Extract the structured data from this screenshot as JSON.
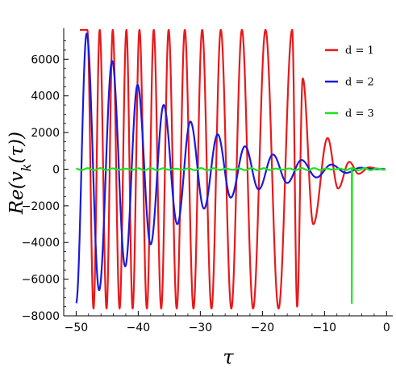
{
  "chart_data": {
    "type": "line",
    "title": "",
    "xlabel": "τ",
    "ylabel": "Re(v_k(τ))",
    "xlim": [
      -52,
      1
    ],
    "ylim": [
      -8000,
      7600
    ],
    "x_ticks": [
      {
        "value": -50,
        "label": "−50"
      },
      {
        "value": -40,
        "label": "−40"
      },
      {
        "value": -30,
        "label": "−30"
      },
      {
        "value": -20,
        "label": "−20"
      },
      {
        "value": -10,
        "label": "−10"
      },
      {
        "value": 0,
        "label": "0"
      }
    ],
    "y_ticks": [
      {
        "value": -8000,
        "label": "−8000"
      },
      {
        "value": -6000,
        "label": "−6000"
      },
      {
        "value": -4000,
        "label": "−4000"
      },
      {
        "value": -2000,
        "label": "−2000"
      },
      {
        "value": 0,
        "label": "0"
      },
      {
        "value": 2000,
        "label": "2000"
      },
      {
        "value": 4000,
        "label": "4000"
      },
      {
        "value": 6000,
        "label": "6000"
      }
    ],
    "grid": false,
    "legend_position": "top-right",
    "series": [
      {
        "name": "d = 1",
        "color": "#e8191b",
        "model": "oscillation",
        "x_start": -49.4,
        "x_end": -0.2,
        "peaks": [
          {
            "x": -48.2,
            "y": 7600
          },
          {
            "x": -47.2,
            "y": -7600
          },
          {
            "x": -46.2,
            "y": 7600
          },
          {
            "x": -45.1,
            "y": -7600
          },
          {
            "x": -44.1,
            "y": 7600
          },
          {
            "x": -43.0,
            "y": -7600
          },
          {
            "x": -41.9,
            "y": 7600
          },
          {
            "x": -40.9,
            "y": -7600
          },
          {
            "x": -39.8,
            "y": 7600
          },
          {
            "x": -38.6,
            "y": -7600
          },
          {
            "x": -37.5,
            "y": 7600
          },
          {
            "x": -36.3,
            "y": -7600
          },
          {
            "x": -35.1,
            "y": 7600
          },
          {
            "x": -33.8,
            "y": -7600
          },
          {
            "x": -32.5,
            "y": 7600
          },
          {
            "x": -31.1,
            "y": -7600
          },
          {
            "x": -29.7,
            "y": 7600
          },
          {
            "x": -28.2,
            "y": -7600
          },
          {
            "x": -26.7,
            "y": 7600
          },
          {
            "x": -25.0,
            "y": -7600
          },
          {
            "x": -23.3,
            "y": 7600
          },
          {
            "x": -21.5,
            "y": -7600
          },
          {
            "x": -19.5,
            "y": 7600
          },
          {
            "x": -17.4,
            "y": -7600
          },
          {
            "x": -15.2,
            "y": 7600
          },
          {
            "x": -14.4,
            "y": -7500
          },
          {
            "x": -13.5,
            "y": 4950
          },
          {
            "x": -11.8,
            "y": -3000
          },
          {
            "x": -9.5,
            "y": 1700
          },
          {
            "x": -7.8,
            "y": -1050
          },
          {
            "x": -6.0,
            "y": 400
          },
          {
            "x": -4.5,
            "y": -250
          },
          {
            "x": -2.8,
            "y": 100
          },
          {
            "x": -1.0,
            "y": 0
          }
        ]
      },
      {
        "name": "d = 2",
        "color": "#1a1adb",
        "model": "oscillation",
        "x_start": -50.0,
        "x_end": -0.2,
        "peaks": [
          {
            "x": -50.0,
            "y": -7300
          },
          {
            "x": -48.3,
            "y": 7400
          },
          {
            "x": -46.3,
            "y": -6600
          },
          {
            "x": -44.2,
            "y": 5900
          },
          {
            "x": -42.1,
            "y": -5300
          },
          {
            "x": -40.1,
            "y": 4600
          },
          {
            "x": -38.0,
            "y": -4100
          },
          {
            "x": -35.9,
            "y": 3500
          },
          {
            "x": -33.7,
            "y": -3000
          },
          {
            "x": -31.6,
            "y": 2600
          },
          {
            "x": -29.4,
            "y": -2150
          },
          {
            "x": -27.2,
            "y": 1900
          },
          {
            "x": -25.1,
            "y": -1550
          },
          {
            "x": -22.8,
            "y": 1250
          },
          {
            "x": -20.6,
            "y": -1100
          },
          {
            "x": -18.3,
            "y": 800
          },
          {
            "x": -16.0,
            "y": -750
          },
          {
            "x": -13.7,
            "y": 500
          },
          {
            "x": -11.3,
            "y": -450
          },
          {
            "x": -8.9,
            "y": 250
          },
          {
            "x": -6.5,
            "y": -200
          },
          {
            "x": -4.2,
            "y": 80
          },
          {
            "x": -2.0,
            "y": 0
          }
        ]
      },
      {
        "name": "d = 3",
        "color": "#19e619",
        "model": "small-oscillation-with-spike",
        "x_start": -50.0,
        "x_end": -0.2,
        "amplitude": 60,
        "spike": {
          "x": -5.6,
          "y": -7300
        }
      }
    ]
  }
}
